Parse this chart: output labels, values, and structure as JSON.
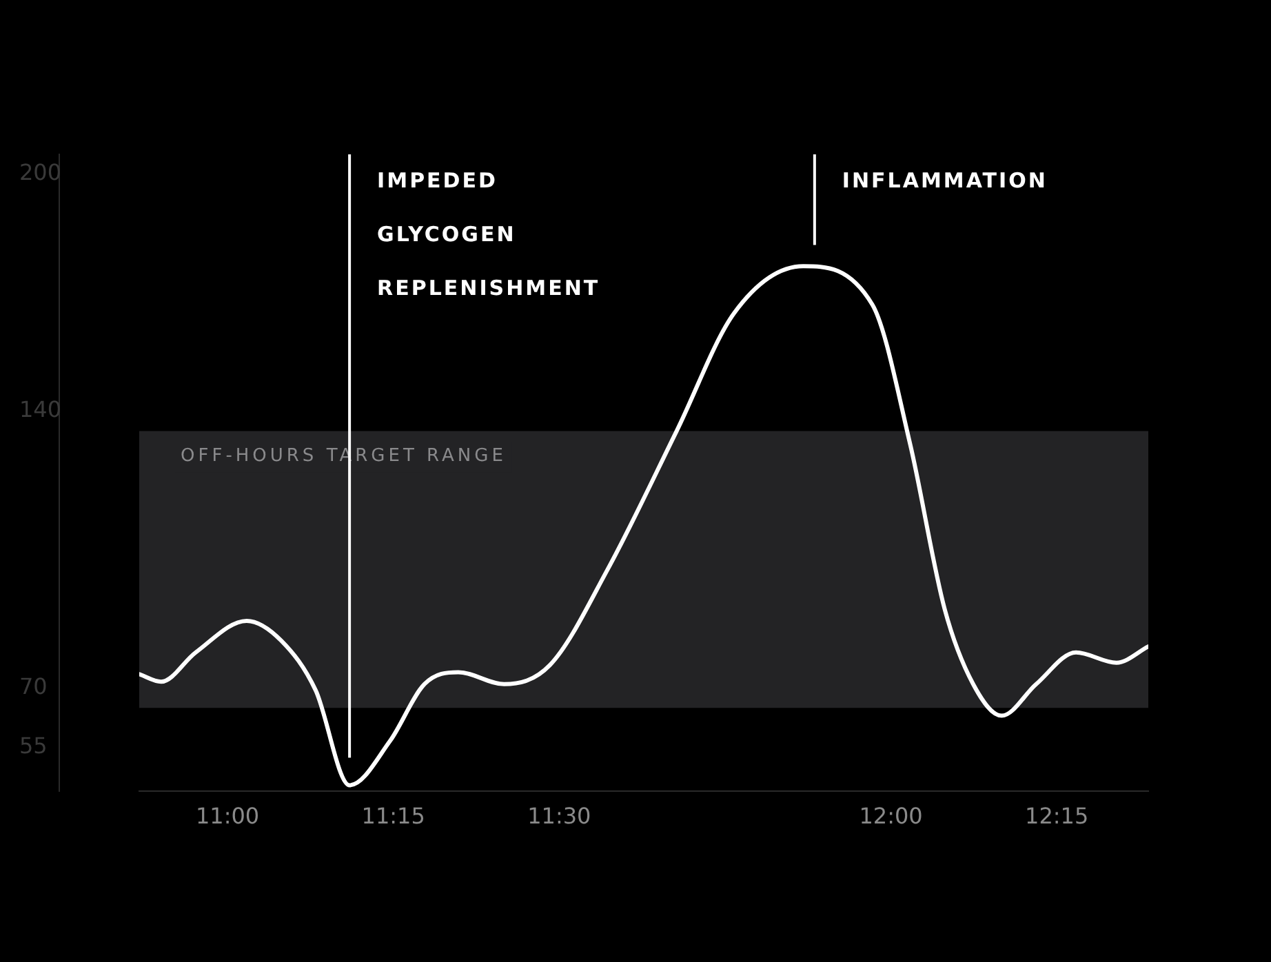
{
  "chart_data": {
    "type": "line",
    "x": [
      10.867,
      10.9,
      10.952,
      11.029,
      11.081,
      11.133,
      11.184,
      11.245,
      11.297,
      11.348,
      11.417,
      11.486,
      11.573,
      11.677,
      11.764,
      11.868,
      11.972,
      12.029,
      12.081,
      12.124,
      12.167,
      12.219,
      12.279,
      12.34,
      12.388
    ],
    "series": [
      {
        "color": "#ffffff",
        "values": [
          73.5,
          71.6,
          79,
          87,
          82,
          69.4,
          45.4,
          56.6,
          71,
          74,
          71,
          75.8,
          100,
          135,
          164.9,
          176.7,
          167,
          131.7,
          90,
          71,
          63,
          71,
          79,
          76.4,
          80.5
        ]
      }
    ],
    "xlim": [
      10.867,
      12.388
    ],
    "xticks": [
      {
        "value": 11,
        "label": "11:00"
      },
      {
        "value": 11.25,
        "label": "11:15"
      },
      {
        "value": 11.5,
        "label": "11:30"
      },
      {
        "value": 12,
        "label": "12:00"
      },
      {
        "value": 12.25,
        "label": "12:15"
      }
    ],
    "ylim": [
      44,
      205
    ],
    "yticks": [
      55,
      70,
      140,
      200
    ],
    "bands": [
      {
        "axis": "y",
        "from": 65,
        "to": 135,
        "label": "OFF-HOURS TARGET RANGE",
        "color": "#232325"
      }
    ],
    "ref_lines": [
      {
        "axis": "x",
        "value": 11.184,
        "label": "IMPEDED GLYCOGEN REPLENISHMENT",
        "color": "#ffffff"
      },
      {
        "axis": "x",
        "value": 11.885,
        "label": "INFLAMMATION",
        "color": "#ffffff"
      }
    ],
    "grid": false,
    "legend": false,
    "marker": "none",
    "line_style": "solid"
  }
}
